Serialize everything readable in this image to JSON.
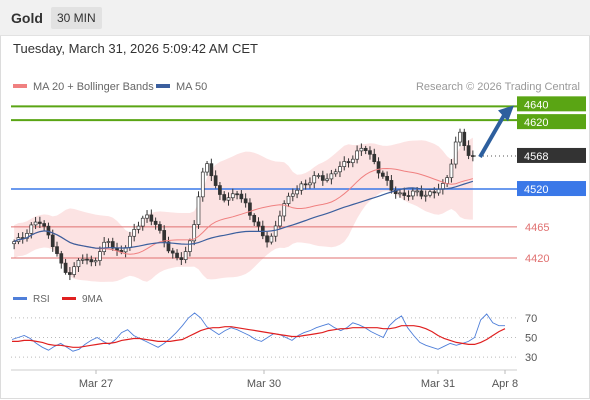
{
  "header": {
    "title": "Gold",
    "timeframe": "30 MIN"
  },
  "timestamp": "Tuesday, March 31, 2026 5:09:42 AM CET",
  "credit": "Research © 2026 Trading Central",
  "colors": {
    "bollinger": "#f08080",
    "band_fill": "#fbd9d9",
    "ma50": "#3b5f9e",
    "target": "#5aa514",
    "pivot": "#3a78e8",
    "support": "#e07070",
    "last": "#333333",
    "rsi": "#4f7fd9",
    "rsi_ma": "#e02020",
    "arrow": "#2d5f9e"
  },
  "chart_data": [
    {
      "type": "line",
      "title": "",
      "xlabel": "",
      "ylabel": "",
      "ylim": [
        4388,
        4655
      ],
      "x": [
        "Mar 27",
        "Mar 30",
        "Mar 31",
        "Apr 8"
      ],
      "legend": [
        {
          "name": "MA 20 + Bollinger Bands",
          "color": "#f08080"
        },
        {
          "name": "MA 50",
          "color": "#3b5f9e"
        }
      ],
      "last_price": 4568,
      "levels": [
        {
          "value": 4640,
          "label": "4640",
          "role": "resistance",
          "color": "#5aa514"
        },
        {
          "value": 4620,
          "label": "4620",
          "role": "resistance",
          "color": "#5aa514"
        },
        {
          "value": 4568,
          "label": "4568",
          "role": "last",
          "color": "#333333"
        },
        {
          "value": 4520,
          "label": "4520",
          "role": "pivot",
          "color": "#3a78e8"
        },
        {
          "value": 4465,
          "label": "4465",
          "role": "support",
          "color": "#e07070"
        },
        {
          "value": 4420,
          "label": "4420",
          "role": "support",
          "color": "#e07070"
        }
      ],
      "price_anchors": [
        4442,
        4445,
        4450,
        4460,
        4470,
        4478,
        4470,
        4455,
        4440,
        4425,
        4408,
        4400,
        4398,
        4410,
        4425,
        4418,
        4410,
        4415,
        4425,
        4440,
        4448,
        4435,
        4428,
        4432,
        4440,
        4455,
        4465,
        4475,
        4482,
        4478,
        4470,
        4455,
        4440,
        4425,
        4420,
        4418,
        4425,
        4440,
        4470,
        4510,
        4545,
        4560,
        4530,
        4515,
        4510,
        4505,
        4512,
        4518,
        4505,
        4495,
        4480,
        4470,
        4460,
        4450,
        4445,
        4460,
        4480,
        4495,
        4505,
        4515,
        4520,
        4528,
        4530,
        4535,
        4540,
        4535,
        4530,
        4538,
        4548,
        4555,
        4560,
        4562,
        4568,
        4575,
        4580,
        4570,
        4560,
        4548,
        4540,
        4530,
        4518,
        4512,
        4508,
        4510,
        4514,
        4518,
        4515,
        4512,
        4514,
        4516,
        4520,
        4525,
        4545,
        4575,
        4608,
        4592,
        4568,
        4568
      ]
    },
    {
      "type": "line",
      "title": "",
      "ylim": [
        25,
        75
      ],
      "yticks": [
        70,
        50,
        30
      ],
      "legend": [
        {
          "name": "RSI",
          "color": "#4f7fd9"
        },
        {
          "name": "9MA",
          "color": "#e02020"
        }
      ],
      "series": [
        {
          "name": "RSI",
          "values": [
            48,
            50,
            52,
            49,
            44,
            40,
            37,
            41,
            44,
            40,
            36,
            38,
            43,
            47,
            50,
            46,
            43,
            48,
            55,
            58,
            52,
            49,
            46,
            43,
            40,
            44,
            49,
            55,
            62,
            70,
            75,
            70,
            61,
            57,
            53,
            57,
            60,
            58,
            55,
            52,
            48,
            46,
            50,
            54,
            53,
            50,
            47,
            52,
            55,
            57,
            60,
            62,
            64,
            60,
            57,
            60,
            65,
            63,
            60,
            56,
            53,
            50,
            62,
            68,
            72,
            60,
            52,
            45,
            42,
            40,
            38,
            41,
            44,
            42,
            44,
            46,
            50,
            68,
            74,
            65,
            62,
            62
          ]
        },
        {
          "name": "9MA",
          "values": [
            46,
            46,
            47,
            47,
            46,
            45,
            43,
            42,
            42,
            41,
            40,
            40,
            41,
            42,
            43,
            44,
            44,
            45,
            47,
            48,
            49,
            49,
            48,
            47,
            46,
            46,
            46,
            47,
            48,
            51,
            54,
            57,
            59,
            60,
            60,
            61,
            61,
            60,
            59,
            58,
            57,
            56,
            55,
            54,
            53,
            52,
            51,
            51,
            52,
            53,
            54,
            55,
            57,
            58,
            59,
            59,
            60,
            60,
            60,
            60,
            60,
            59,
            59,
            60,
            62,
            62,
            62,
            61,
            59,
            56,
            52,
            49,
            47,
            45,
            44,
            43,
            43,
            45,
            48,
            52,
            56,
            59
          ]
        }
      ]
    }
  ]
}
